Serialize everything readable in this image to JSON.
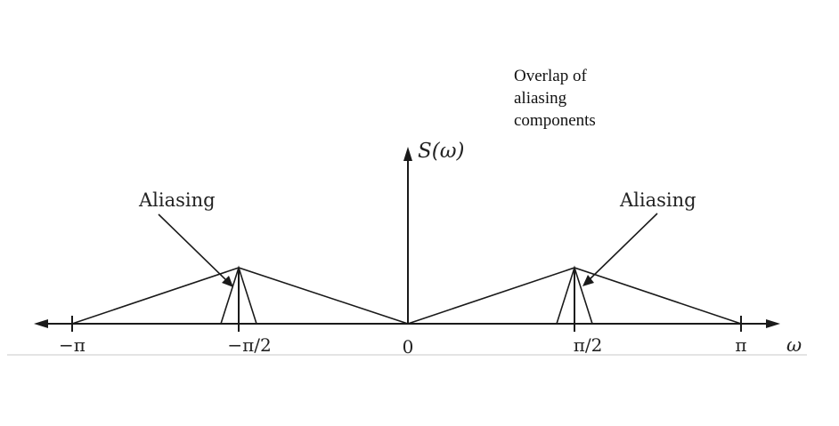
{
  "annotation": "Overlap of\naliasing\ncomponents",
  "y_axis_label": "S(ω)",
  "x_axis_label": "ω",
  "aliasing_left": "Aliasing",
  "aliasing_right": "Aliasing",
  "ticks": [
    "−π",
    "−π/2",
    "0",
    "π/2",
    "π"
  ],
  "colors": {
    "line": "#1a1a1a",
    "baseline": "#bdbdbd"
  }
}
